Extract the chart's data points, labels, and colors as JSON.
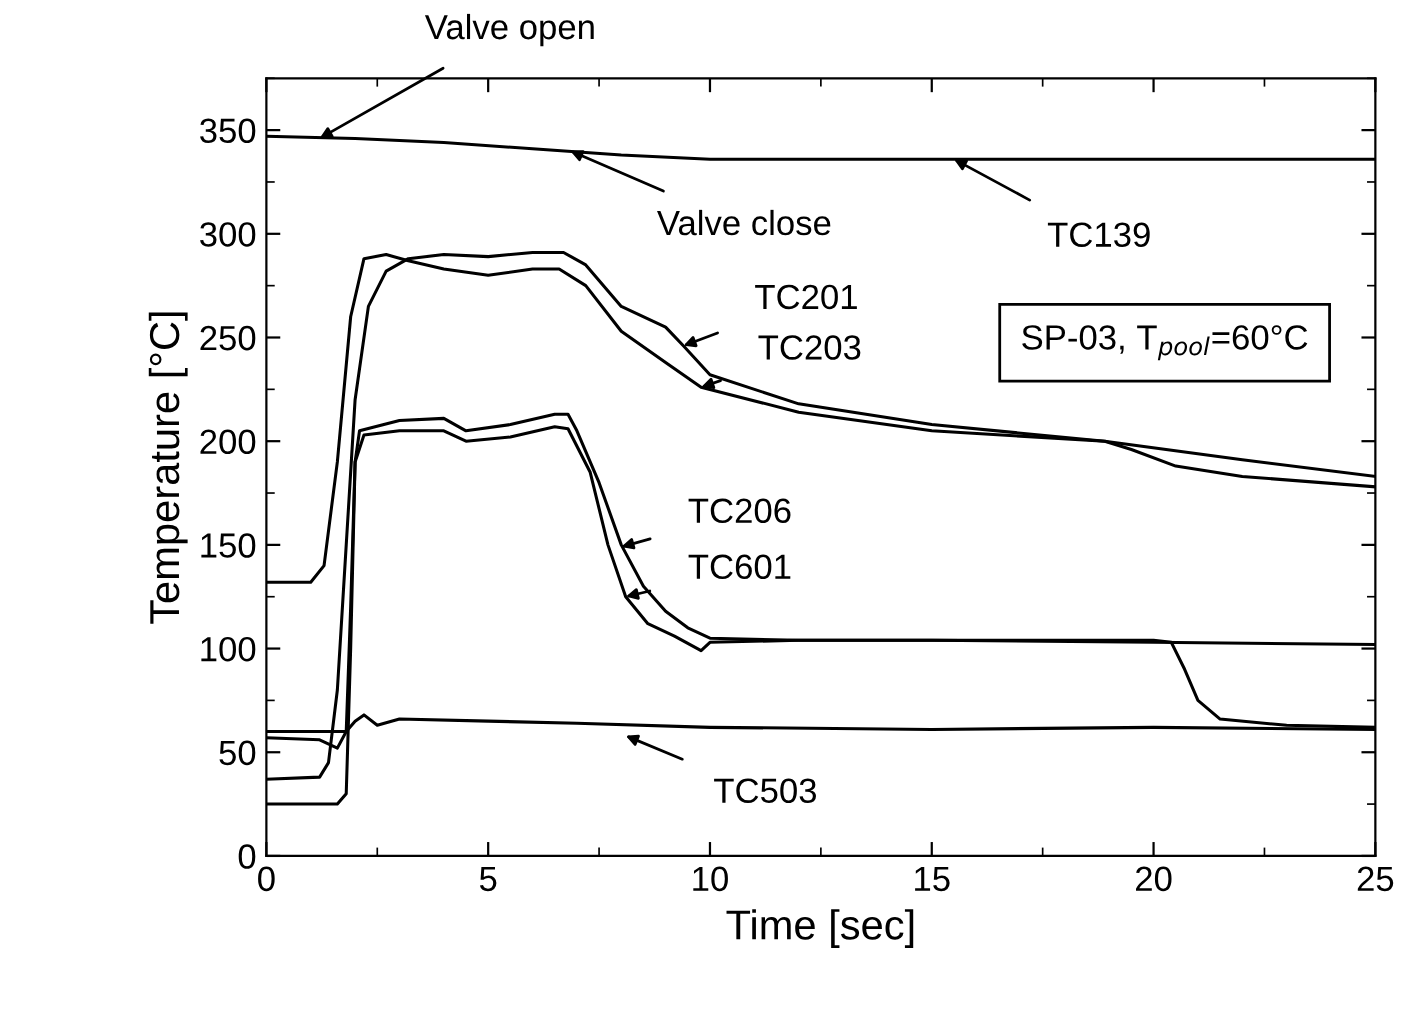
{
  "chart_data": {
    "type": "line",
    "xlabel": "Time [sec]",
    "ylabel": "Temperature [°C]",
    "xlim": [
      0,
      25
    ],
    "xticks": [
      0,
      5,
      10,
      15,
      20,
      25
    ],
    "ylim": [
      0,
      375
    ],
    "yticks": [
      0,
      50,
      100,
      150,
      200,
      250,
      300,
      350
    ],
    "series": [
      {
        "color": "#000000",
        "x": [
          0,
          2,
          4,
          6,
          8,
          10,
          15,
          20,
          25
        ],
        "values": [
          347,
          346,
          344,
          341,
          338,
          336,
          336,
          336,
          336
        ]
      },
      {
        "color": "#000000",
        "x": [
          0,
          1.2,
          1.4,
          1.6,
          1.8,
          2.0,
          2.3,
          2.7,
          3.2,
          4,
          5,
          6,
          6.7,
          7.2,
          8,
          9,
          9.4,
          10,
          12,
          15,
          18.9,
          22,
          25
        ],
        "values": [
          37,
          38,
          45,
          80,
          150,
          220,
          265,
          282,
          288,
          290,
          289,
          291,
          291,
          285,
          265,
          255,
          246,
          232,
          218,
          208,
          200,
          191,
          183
        ]
      },
      {
        "color": "#000000",
        "x": [
          0,
          1.0,
          1.3,
          1.6,
          1.9,
          2.2,
          2.7,
          3.2,
          4,
          5,
          6,
          6.6,
          7.2,
          8,
          9,
          9.8,
          12,
          15,
          18.9,
          19.5,
          20.5,
          22,
          25
        ],
        "values": [
          132,
          132,
          140,
          190,
          260,
          288,
          290,
          287,
          283,
          280,
          283,
          283,
          275,
          253,
          238,
          226,
          214,
          205,
          200,
          196,
          188,
          183,
          178
        ]
      },
      {
        "color": "#000000",
        "x": [
          0,
          1.2,
          1.6,
          1.8,
          1.9,
          2.0,
          2.1,
          3,
          4,
          4.5,
          5.5,
          6.5,
          6.8,
          7,
          7.5,
          8,
          8.5,
          9,
          9.5,
          10,
          12,
          15,
          20,
          25
        ],
        "values": [
          57,
          56,
          52,
          60,
          120,
          190,
          205,
          210,
          211,
          205,
          208,
          213,
          213,
          205,
          180,
          150,
          130,
          118,
          110,
          105,
          104,
          104,
          103,
          102
        ]
      },
      {
        "color": "#000000",
        "x": [
          0,
          1.6,
          1.8,
          1.9,
          2.0,
          2.2,
          3,
          4,
          4.5,
          5.5,
          6.5,
          6.8,
          7.3,
          7.7,
          8.1,
          8.6,
          9.2,
          9.8,
          10,
          12,
          15,
          20,
          20.4,
          20.7,
          21,
          21.5,
          23,
          25
        ],
        "values": [
          25,
          25,
          30,
          100,
          190,
          203,
          205,
          205,
          200,
          202,
          207,
          206,
          185,
          150,
          125,
          112,
          106,
          99,
          103,
          104,
          104,
          104,
          103,
          90,
          75,
          66,
          63,
          62
        ]
      },
      {
        "color": "#000000",
        "x": [
          0,
          1.8,
          2.0,
          2.2,
          2.5,
          3,
          5,
          7,
          10,
          15,
          20,
          25
        ],
        "values": [
          60,
          60,
          65,
          68,
          63,
          66,
          65,
          64,
          62,
          61,
          62,
          61
        ]
      }
    ],
    "annotations": [
      {
        "text": "Valve open",
        "x": 1.2,
        "y": 346
      },
      {
        "text": "Valve close",
        "x": 6.85,
        "y": 340
      },
      {
        "text": "TC139",
        "x": 15.5,
        "y": 336
      },
      {
        "text": "TC201",
        "x": 9.4,
        "y": 246
      },
      {
        "text": "TC203",
        "x": 9.8,
        "y": 226
      },
      {
        "text": "TC206",
        "x": 8.0,
        "y": 149
      },
      {
        "text": "TC601",
        "x": 8.1,
        "y": 125
      },
      {
        "text": "TC503",
        "x": 8.1,
        "y": 58
      },
      "SP-03, T$_{pool}$=60°C"
    ]
  }
}
